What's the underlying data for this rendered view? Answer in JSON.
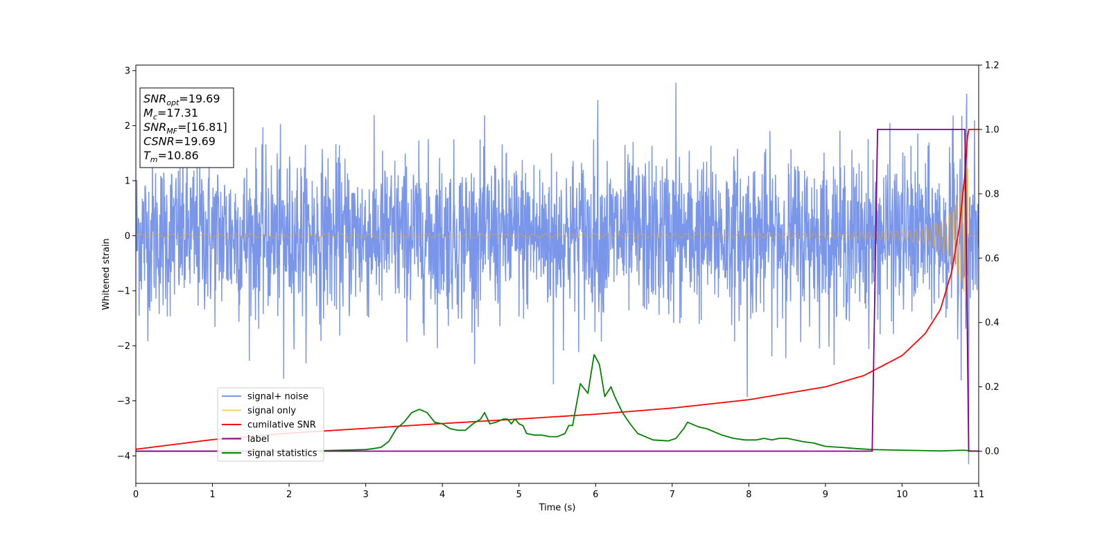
{
  "chart_data": {
    "type": "line",
    "xlabel": "Time (s)",
    "ylabel": "Whitened strain",
    "xlim": [
      0,
      11
    ],
    "ylim": [
      -4.5,
      3.1
    ],
    "y2lim": [
      -0.1,
      1.2
    ],
    "x_ticks": [
      0,
      1,
      2,
      3,
      4,
      5,
      6,
      7,
      8,
      9,
      10,
      11
    ],
    "y_ticks": [
      -4,
      -3,
      -2,
      -1,
      0,
      1,
      2,
      3
    ],
    "y2_ticks": [
      0.0,
      0.2,
      0.4,
      0.6,
      0.8,
      1.0,
      1.2
    ],
    "grid": false,
    "legend_position": "lower-left",
    "annotation": [
      {
        "main": "SNR",
        "sub": "opt",
        "value": "=19.69"
      },
      {
        "main": "M",
        "sub": "c",
        "value": "=17.31"
      },
      {
        "main": "SNR",
        "sub": "MF",
        "value": "=[16.81]"
      },
      {
        "main": "CSNR",
        "sub": "",
        "value": "=19.69"
      },
      {
        "main": "T",
        "sub": "m",
        "value": "=10.86"
      }
    ],
    "series": [
      {
        "name": "signal+ noise",
        "color": "#4169e1",
        "axis": "left",
        "noise_std": 0.72,
        "time_range": [
          0,
          11
        ],
        "peaks": [
          [
            1.93,
            -2.6
          ],
          [
            5.45,
            -2.7
          ],
          [
            6.03,
            2.47
          ],
          [
            7.05,
            2.78
          ],
          [
            7.98,
            -2.93
          ],
          [
            10.87,
            -4.15
          ],
          [
            10.78,
            2.18
          ]
        ]
      },
      {
        "name": "signal only",
        "color": "#ffa500",
        "axis": "left",
        "chirp_merger_time": 10.86,
        "start_amplitude": 0.03,
        "peak_amplitude": 1.3
      },
      {
        "name": "cumilative SNR",
        "color": "#ff0000",
        "axis": "right",
        "x": [
          0,
          1,
          2,
          3,
          4,
          5,
          6,
          7,
          8,
          9,
          9.5,
          10,
          10.3,
          10.5,
          10.65,
          10.75,
          10.82,
          10.86,
          11
        ],
        "y": [
          0.006,
          0.036,
          0.056,
          0.071,
          0.086,
          0.1,
          0.115,
          0.134,
          0.16,
          0.2,
          0.235,
          0.297,
          0.365,
          0.44,
          0.56,
          0.7,
          0.86,
          1.0,
          1.0
        ]
      },
      {
        "name": "label",
        "color": "#800080",
        "axis": "right",
        "x": [
          0,
          9.61,
          9.68,
          10.82,
          10.87,
          11
        ],
        "y": [
          0,
          0,
          1,
          1,
          0,
          0
        ]
      },
      {
        "name": "signal statistics",
        "color": "#008000",
        "axis": "right",
        "x": [
          0,
          2,
          2.5,
          3,
          3.1,
          3.2,
          3.3,
          3.4,
          3.5,
          3.6,
          3.7,
          3.8,
          3.9,
          4.0,
          4.1,
          4.2,
          4.3,
          4.4,
          4.5,
          4.55,
          4.62,
          4.7,
          4.8,
          4.85,
          4.9,
          4.95,
          5.0,
          5.05,
          5.1,
          5.2,
          5.3,
          5.4,
          5.5,
          5.6,
          5.65,
          5.7,
          5.8,
          5.9,
          5.98,
          6.05,
          6.12,
          6.2,
          6.25,
          6.35,
          6.45,
          6.55,
          6.6,
          6.75,
          6.95,
          7.05,
          7.15,
          7.2,
          7.3,
          7.35,
          7.45,
          7.55,
          7.65,
          7.8,
          7.95,
          8.1,
          8.2,
          8.3,
          8.4,
          8.5,
          8.6,
          8.7,
          8.85,
          9.0,
          9.2,
          9.4,
          9.61,
          10.0,
          10.5,
          10.8,
          10.9,
          11
        ],
        "y": [
          0.0,
          0.0,
          0.002,
          0.005,
          0.008,
          0.012,
          0.03,
          0.07,
          0.09,
          0.12,
          0.13,
          0.12,
          0.09,
          0.085,
          0.07,
          0.065,
          0.065,
          0.085,
          0.1,
          0.12,
          0.085,
          0.09,
          0.1,
          0.1,
          0.085,
          0.1,
          0.085,
          0.08,
          0.055,
          0.05,
          0.05,
          0.045,
          0.045,
          0.055,
          0.08,
          0.08,
          0.21,
          0.18,
          0.3,
          0.27,
          0.17,
          0.2,
          0.17,
          0.12,
          0.085,
          0.055,
          0.05,
          0.035,
          0.032,
          0.04,
          0.07,
          0.09,
          0.08,
          0.075,
          0.07,
          0.06,
          0.05,
          0.04,
          0.035,
          0.035,
          0.04,
          0.035,
          0.04,
          0.04,
          0.035,
          0.03,
          0.025,
          0.015,
          0.012,
          0.008,
          0.005,
          0.003,
          0.001,
          0.003,
          0.001,
          0.0
        ]
      }
    ]
  }
}
